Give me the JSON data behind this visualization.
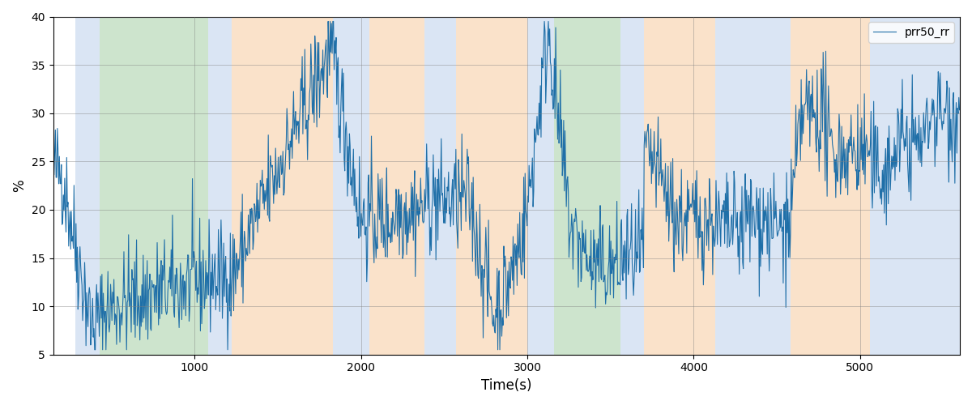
{
  "xlabel": "Time(s)",
  "ylabel": "%",
  "ylim": [
    5,
    40
  ],
  "xlim": [
    150,
    5600
  ],
  "xticks": [
    1000,
    2000,
    3000,
    4000,
    5000
  ],
  "yticks": [
    5,
    10,
    15,
    20,
    25,
    30,
    35,
    40
  ],
  "line_color": "#1f6fa8",
  "line_width": 0.8,
  "legend_label": "prr50_rr",
  "background_color": "#ffffff",
  "colored_regions": [
    {
      "start": 280,
      "end": 430,
      "color": "#aec6e8",
      "alpha": 0.45
    },
    {
      "start": 430,
      "end": 1080,
      "color": "#90c490",
      "alpha": 0.45
    },
    {
      "start": 1080,
      "end": 1220,
      "color": "#aec6e8",
      "alpha": 0.45
    },
    {
      "start": 1220,
      "end": 1830,
      "color": "#f5c08a",
      "alpha": 0.45
    },
    {
      "start": 1830,
      "end": 2050,
      "color": "#aec6e8",
      "alpha": 0.45
    },
    {
      "start": 2050,
      "end": 2380,
      "color": "#f5c08a",
      "alpha": 0.45
    },
    {
      "start": 2380,
      "end": 2570,
      "color": "#aec6e8",
      "alpha": 0.45
    },
    {
      "start": 2570,
      "end": 3000,
      "color": "#f5c08a",
      "alpha": 0.45
    },
    {
      "start": 3000,
      "end": 3160,
      "color": "#aec6e8",
      "alpha": 0.45
    },
    {
      "start": 3160,
      "end": 3560,
      "color": "#90c490",
      "alpha": 0.45
    },
    {
      "start": 3560,
      "end": 3700,
      "color": "#aec6e8",
      "alpha": 0.45
    },
    {
      "start": 3700,
      "end": 4130,
      "color": "#f5c08a",
      "alpha": 0.45
    },
    {
      "start": 4130,
      "end": 4580,
      "color": "#aec6e8",
      "alpha": 0.45
    },
    {
      "start": 4580,
      "end": 5060,
      "color": "#f5c08a",
      "alpha": 0.45
    },
    {
      "start": 5060,
      "end": 5600,
      "color": "#aec6e8",
      "alpha": 0.45
    }
  ],
  "seed": 42,
  "dt": 4
}
